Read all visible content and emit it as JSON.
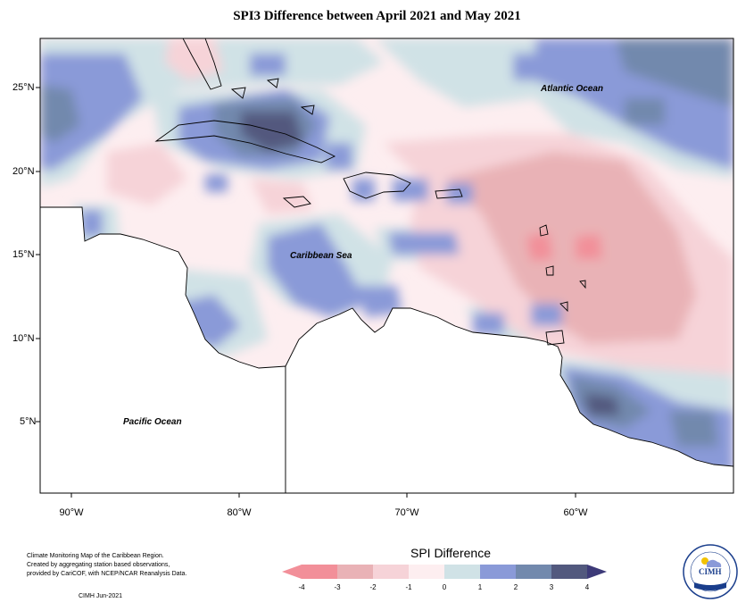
{
  "title": "SPI3 Difference between April 2021 and May 2021",
  "map": {
    "latitude_labels": [
      "25°N",
      "20°N",
      "15°N",
      "10°N",
      "5°N"
    ],
    "longitude_labels": [
      "90°W",
      "80°W",
      "70°W",
      "60°W"
    ],
    "ocean_labels": {
      "atlantic": "Atlantic Ocean",
      "caribbean": "Caribbean Sea",
      "pacific": "Pacific Ocean"
    }
  },
  "legend": {
    "title": "SPI Difference",
    "ticks": [
      "-4",
      "-3",
      "-2",
      "-1",
      "0",
      "1",
      "2",
      "3",
      "4"
    ],
    "colors": [
      "#f28f99",
      "#e9b2b6",
      "#f6d3d8",
      "#fdeef0",
      "#d0e2e6",
      "#8a9ad8",
      "#7289ad",
      "#52597e"
    ]
  },
  "credit": {
    "lines": [
      "Climate Monitoring Map of the Caribbean Region.",
      "Created by aggregating station based observations,",
      "provided by CariCOF, with NCEP/NCAR Reanalysis Data."
    ],
    "date": "CIMH Jun-2021"
  },
  "logo": {
    "text": "CIMH"
  }
}
